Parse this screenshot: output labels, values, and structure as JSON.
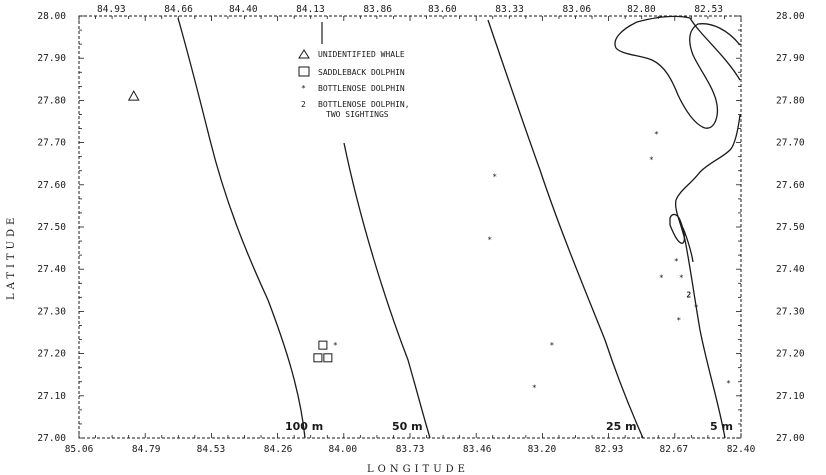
{
  "axes": {
    "x_title": "LONGITUDE",
    "y_title": "LATITUDE",
    "top_ticks": [
      "84.93",
      "84.66",
      "84.40",
      "84.13",
      "83.86",
      "83.60",
      "83.33",
      "83.06",
      "82.80",
      "82.53"
    ],
    "bottom_ticks": [
      "85.06",
      "84.79",
      "84.53",
      "84.26",
      "84.00",
      "83.73",
      "83.46",
      "83.20",
      "82.93",
      "82.67",
      "82.40"
    ],
    "left_ticks": [
      "28.00",
      "27.90",
      "27.80",
      "27.70",
      "27.60",
      "27.50",
      "27.40",
      "27.30",
      "27.20",
      "27.10",
      "27.00"
    ],
    "right_ticks": [
      "28.00",
      "27.90",
      "27.80",
      "27.70",
      "27.60",
      "27.50",
      "27.40",
      "27.30",
      "27.20",
      "27.10",
      "27.00"
    ],
    "lon_range": [
      85.06,
      82.4
    ],
    "lat_range": [
      27.0,
      28.0
    ]
  },
  "legend": {
    "items": [
      {
        "symbol": "triangle",
        "label": "UNIDENTIFIED WHALE"
      },
      {
        "symbol": "square",
        "label": "SADDLEBACK DOLPHIN"
      },
      {
        "symbol": "*",
        "label": "BOTTLENOSE DOLPHIN"
      },
      {
        "symbol": "2",
        "label": "BOTTLENOSE DOLPHIN,",
        "label2": "TWO SIGHTINGS"
      }
    ]
  },
  "contours": {
    "c100": "100 m",
    "c50": "50 m",
    "c25": "25 m",
    "c5": "5 m"
  },
  "sightings": {
    "whale": [
      {
        "lon": 84.84,
        "lat": 27.81
      }
    ],
    "saddleback": [
      {
        "lon": 84.08,
        "lat": 27.22
      },
      {
        "lon": 84.1,
        "lat": 27.19
      },
      {
        "lon": 84.06,
        "lat": 27.19
      }
    ],
    "bottlenose": [
      {
        "lon": 84.03,
        "lat": 27.22
      },
      {
        "lon": 83.39,
        "lat": 27.62
      },
      {
        "lon": 83.41,
        "lat": 27.47
      },
      {
        "lon": 83.16,
        "lat": 27.22
      },
      {
        "lon": 83.23,
        "lat": 27.12
      },
      {
        "lon": 82.74,
        "lat": 27.72
      },
      {
        "lon": 82.76,
        "lat": 27.66
      },
      {
        "lon": 82.72,
        "lat": 27.38
      },
      {
        "lon": 82.66,
        "lat": 27.42
      },
      {
        "lon": 82.64,
        "lat": 27.38
      },
      {
        "lon": 82.58,
        "lat": 27.31
      },
      {
        "lon": 82.65,
        "lat": 27.28
      },
      {
        "lon": 82.45,
        "lat": 27.13
      }
    ],
    "two_sightings": [
      {
        "lon": 82.61,
        "lat": 27.34,
        "label": "2"
      }
    ]
  }
}
